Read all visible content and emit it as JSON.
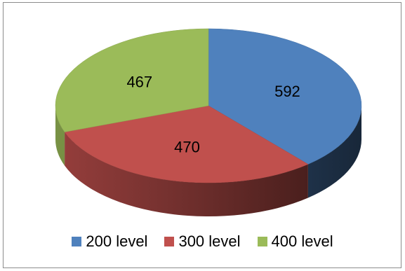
{
  "chart_data": {
    "type": "pie",
    "title": "",
    "categories": [
      "200 level",
      "300 level",
      "400 level"
    ],
    "values": [
      592,
      470,
      467
    ],
    "colors": [
      "#4f81bd",
      "#c0504d",
      "#9bbb59"
    ],
    "legend_placement": "bottom"
  }
}
